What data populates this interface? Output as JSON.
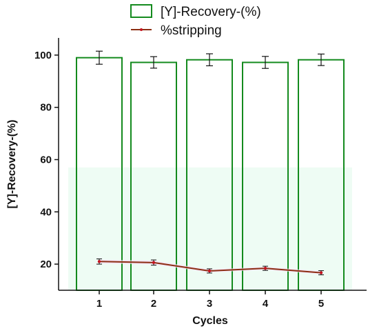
{
  "chart_data": {
    "type": "bar",
    "xlabel": "Cycles",
    "ylabel": "[Y]-Recovery-(%)",
    "categories": [
      "1",
      "2",
      "3",
      "4",
      "5"
    ],
    "ylim": [
      10,
      110
    ],
    "yticks": [
      20,
      40,
      60,
      80,
      100
    ],
    "grid": false,
    "legend_position": "top-center",
    "series": [
      {
        "name": "[Y]-Recovery-(%)",
        "kind": "bar",
        "values": [
          99.0,
          97.2,
          98.2,
          97.2,
          98.2
        ],
        "errors": [
          2.5,
          2.2,
          2.3,
          2.3,
          2.2
        ],
        "color": "#138a1d"
      },
      {
        "name": "%stripping",
        "kind": "line",
        "values": [
          21.0,
          20.6,
          17.4,
          18.4,
          16.7
        ],
        "errors": [
          1.0,
          1.0,
          0.8,
          0.8,
          0.8
        ],
        "color": "#8b2e12"
      }
    ]
  }
}
